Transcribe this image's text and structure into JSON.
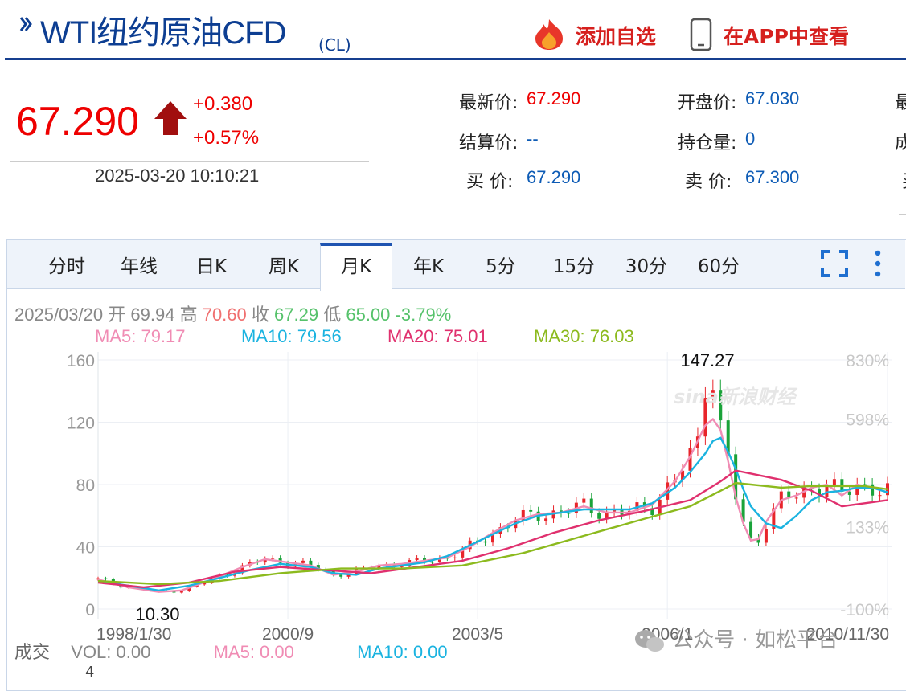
{
  "header": {
    "title": "WTI纽约原油CFD",
    "code": "(CL)",
    "add_watch": "添加自选",
    "view_app": "在APP中查看"
  },
  "quote": {
    "price": "67.290",
    "change": "+0.380",
    "change_pct": "+0.57%",
    "time": "2025-03-20 10:10:21",
    "fields": [
      {
        "label": "最新价:",
        "value": "67.290",
        "color": "red"
      },
      {
        "label": "开盘价:",
        "value": "67.030",
        "color": "blue"
      },
      {
        "label": "结算价:",
        "value": "--",
        "color": "blue"
      },
      {
        "label": "持仓量:",
        "value": "0",
        "color": "blue"
      },
      {
        "label": "买  价:",
        "value": "67.290",
        "color": "blue"
      },
      {
        "label": "卖  价:",
        "value": "67.300",
        "color": "blue"
      }
    ],
    "cut_labels": [
      "最",
      "成",
      "买"
    ]
  },
  "tabs": [
    "分时",
    "年线",
    "日K",
    "周K",
    "月K",
    "年K",
    "5分",
    "15分",
    "30分",
    "60分"
  ],
  "active_tab": "月K",
  "ohlc": {
    "date": "2025/03/20",
    "open_label": "开",
    "open": "69.94",
    "high_label": "高",
    "high": "70.60",
    "close_label": "收",
    "close": "67.29",
    "low_label": "低",
    "low": "65.00",
    "pct": "-3.79%"
  },
  "ma_legend": [
    {
      "text": "MA5: 79.17",
      "color": "#f08cb4"
    },
    {
      "text": "MA10: 79.56",
      "color": "#1ab3e0"
    },
    {
      "text": "MA20: 75.01",
      "color": "#e0306e"
    },
    {
      "text": "MA30: 76.03",
      "color": "#8cba1e"
    }
  ],
  "chart_data": {
    "type": "candlestick",
    "y_ticks": [
      "160",
      "120",
      "80",
      "40",
      "0"
    ],
    "y_right_ticks": [
      "830%",
      "598%",
      "133%",
      "-100%"
    ],
    "x_ticks": [
      "1998/1/30",
      "2000/9",
      "2003/5",
      "2006/1",
      "2010/11/30"
    ],
    "ylim": [
      0,
      160
    ],
    "annotations": [
      {
        "text": "147.27",
        "value": 147.27
      },
      {
        "text": "10.30",
        "value": 10.3
      }
    ],
    "series": [
      {
        "name": "MA5",
        "color": "#f08cb4",
        "points": [
          [
            0,
            19
          ],
          [
            4,
            14
          ],
          [
            8,
            11
          ],
          [
            11,
            12
          ],
          [
            15,
            19
          ],
          [
            19,
            27
          ],
          [
            22,
            32
          ],
          [
            25,
            30
          ],
          [
            28,
            28
          ],
          [
            31,
            22
          ],
          [
            34,
            24
          ],
          [
            37,
            28
          ],
          [
            40,
            29
          ],
          [
            43,
            31
          ],
          [
            46,
            33
          ],
          [
            49,
            40
          ],
          [
            52,
            49
          ],
          [
            55,
            57
          ],
          [
            58,
            61
          ],
          [
            61,
            62
          ],
          [
            64,
            66
          ],
          [
            67,
            62
          ],
          [
            70,
            62
          ],
          [
            73,
            67
          ],
          [
            76,
            82
          ],
          [
            78,
            98
          ],
          [
            80,
            118
          ],
          [
            81,
            122
          ],
          [
            82,
            115
          ],
          [
            83,
            95
          ],
          [
            84,
            72
          ],
          [
            85,
            55
          ],
          [
            86,
            44
          ],
          [
            87,
            45
          ],
          [
            88,
            56
          ],
          [
            90,
            70
          ],
          [
            92,
            73
          ],
          [
            94,
            78
          ],
          [
            96,
            80
          ],
          [
            98,
            73
          ],
          [
            100,
            80
          ],
          [
            102,
            78
          ],
          [
            104,
            75
          ]
        ]
      },
      {
        "name": "MA10",
        "color": "#1ab3e0",
        "points": [
          [
            0,
            18
          ],
          [
            4,
            15
          ],
          [
            8,
            12
          ],
          [
            12,
            15
          ],
          [
            16,
            20
          ],
          [
            20,
            25
          ],
          [
            24,
            29
          ],
          [
            28,
            27
          ],
          [
            31,
            23
          ],
          [
            34,
            22
          ],
          [
            37,
            26
          ],
          [
            40,
            28
          ],
          [
            43,
            30
          ],
          [
            46,
            34
          ],
          [
            49,
            41
          ],
          [
            52,
            48
          ],
          [
            55,
            55
          ],
          [
            58,
            60
          ],
          [
            61,
            62
          ],
          [
            64,
            64
          ],
          [
            67,
            64
          ],
          [
            70,
            64
          ],
          [
            73,
            68
          ],
          [
            76,
            78
          ],
          [
            78,
            88
          ],
          [
            80,
            100
          ],
          [
            81,
            108
          ],
          [
            82,
            110
          ],
          [
            83,
            101
          ],
          [
            84,
            90
          ],
          [
            85,
            77
          ],
          [
            86,
            66
          ],
          [
            88,
            55
          ],
          [
            90,
            52
          ],
          [
            92,
            60
          ],
          [
            94,
            70
          ],
          [
            96,
            75
          ],
          [
            98,
            76
          ],
          [
            100,
            78
          ],
          [
            102,
            78
          ],
          [
            104,
            75
          ]
        ]
      },
      {
        "name": "MA20",
        "color": "#e0306e",
        "points": [
          [
            0,
            17
          ],
          [
            6,
            14
          ],
          [
            12,
            17
          ],
          [
            18,
            24
          ],
          [
            24,
            27
          ],
          [
            30,
            25
          ],
          [
            36,
            23
          ],
          [
            42,
            27
          ],
          [
            48,
            31
          ],
          [
            54,
            39
          ],
          [
            60,
            49
          ],
          [
            66,
            57
          ],
          [
            72,
            63
          ],
          [
            78,
            70
          ],
          [
            82,
            82
          ],
          [
            84,
            89
          ],
          [
            86,
            87
          ],
          [
            90,
            83
          ],
          [
            94,
            76
          ],
          [
            98,
            66
          ],
          [
            101,
            68
          ],
          [
            104,
            70
          ]
        ]
      },
      {
        "name": "MA30",
        "color": "#8cba1e",
        "points": [
          [
            0,
            18
          ],
          [
            8,
            16
          ],
          [
            16,
            18
          ],
          [
            24,
            23
          ],
          [
            32,
            26
          ],
          [
            40,
            26
          ],
          [
            48,
            28
          ],
          [
            56,
            36
          ],
          [
            64,
            47
          ],
          [
            72,
            58
          ],
          [
            78,
            66
          ],
          [
            82,
            76
          ],
          [
            84,
            81
          ],
          [
            86,
            80
          ],
          [
            90,
            78
          ],
          [
            94,
            79
          ],
          [
            98,
            79
          ],
          [
            101,
            79
          ],
          [
            104,
            77
          ]
        ]
      }
    ],
    "candles_note": "monthly candles rendered as red (up) / green (down) bars"
  },
  "volume": {
    "label": "成交",
    "vol": "VOL: 0.00",
    "ma5": "MA5: 0.00",
    "ma10": "MA10: 0.00",
    "tick": "4"
  },
  "watermark": "公众号 · 如松平台",
  "brand_mark": "sina新浪财经"
}
